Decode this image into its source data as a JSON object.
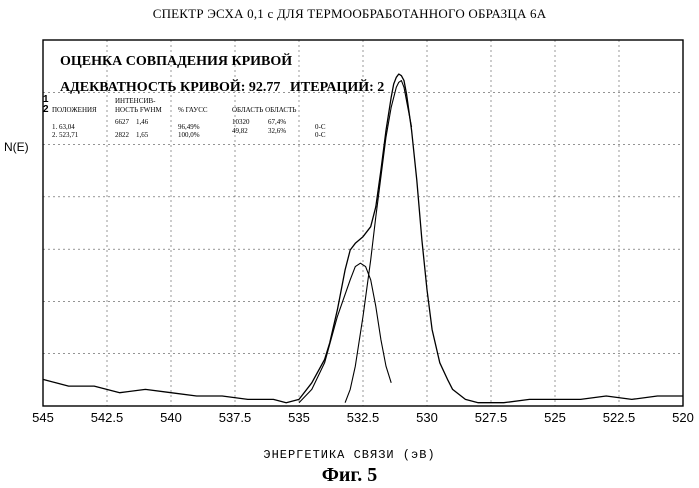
{
  "figure": {
    "title": "СПЕКТР ЭСХА 0,1 с ДЛЯ ТЕРМООБРАБОТАННОГО ОБРАЗЦА 6А",
    "caption": "Фиг. 5"
  },
  "fit_panel": {
    "title": "ОЦЕНКА СОВПАДЕНИЯ КРИВОЙ",
    "adequacy_label": "АДЕКВАТНОСТЬ КРИВОЙ: 92.77",
    "iterations_label": "ИТЕРАЦИЙ: 2",
    "side_numbers": [
      "1",
      "2"
    ],
    "headers": {
      "position": "ПОЛОЖЕНИЯ",
      "intensity_line1": "ИНТЕНСИВ-",
      "intensity_line2": "НОСТЬ FWHM",
      "gauss": "% ГАУСС",
      "area": "ОБЛАСТЬ ОБЛАСТЬ"
    },
    "rows": [
      {
        "position": "1. 63,04",
        "intensity": "6627",
        "fwhm": "1,46",
        "gauss": "96,49%",
        "area": "10320",
        "area_pct": "67,4%",
        "tag": "0-C"
      },
      {
        "position": "2. 523,71",
        "intensity": "2822",
        "fwhm": "1,65",
        "gauss": "100,0%",
        "area": "49,82",
        "area_pct": "32,6%",
        "tag": "0-C"
      }
    ]
  },
  "chart_data": {
    "type": "line",
    "title": "СПЕКТР ЭСХА 0,1 с ДЛЯ ТЕРМООБРАБОТАННОГО ОБРАЗЦА 6А",
    "xlabel": "ЭНЕРГЕТИКА СВЯЗИ (эВ)",
    "ylabel": "N(E)",
    "x_ticks": [
      545,
      542.5,
      540,
      537.5,
      535,
      532.5,
      530,
      527.5,
      525,
      522.5,
      520
    ],
    "x_tick_labels": [
      "545",
      "542.5",
      "540",
      "537.5",
      "535",
      "532.5",
      "530",
      "527.5",
      "525",
      "522.5",
      "520"
    ],
    "xlim": [
      545,
      520
    ],
    "x_reversed": true,
    "ylim": [
      0,
      100
    ],
    "grid": true,
    "grid_style": "dashed",
    "series": [
      {
        "role": "measured-envelope",
        "x": [
          545,
          544.5,
          544,
          543,
          542,
          541,
          540,
          539,
          538,
          537,
          536,
          535.5,
          535,
          534.5,
          534,
          533.8,
          533.5,
          533.2,
          533,
          532.8,
          532.5,
          532.2,
          532,
          531.8,
          531.6,
          531.4,
          531.3,
          531.2,
          531.1,
          531,
          530.9,
          530.8,
          530.6,
          530.4,
          530.2,
          530,
          529.8,
          529.5,
          529.2,
          529,
          528.5,
          528,
          527.5,
          527,
          526,
          525,
          524,
          523,
          522,
          521,
          520
        ],
        "y": [
          8,
          7,
          6,
          6,
          4,
          5,
          4,
          3,
          3,
          2,
          2,
          1,
          2,
          7,
          14,
          19,
          29,
          41,
          47,
          49,
          51,
          54,
          60,
          71,
          83,
          93,
          97,
          99,
          100,
          99.5,
          98,
          94,
          83,
          68,
          50,
          35,
          23,
          13,
          8,
          5,
          2,
          1,
          1,
          1,
          2,
          2,
          2,
          3,
          2,
          3,
          3
        ]
      },
      {
        "role": "fit-component-1",
        "x": [
          535,
          534.5,
          534,
          533.5,
          533,
          532.8,
          532.6,
          532.4,
          532.2,
          532,
          531.8,
          531.6,
          531.4
        ],
        "y": [
          1,
          5,
          13,
          27,
          38,
          42,
          43,
          42,
          38,
          30,
          20,
          12,
          7
        ]
      },
      {
        "role": "fit-component-2",
        "x": [
          533.2,
          533,
          532.8,
          532.5,
          532.2,
          532,
          531.8,
          531.6,
          531.4,
          531.2,
          531.1,
          531,
          530.9,
          530.8,
          530.6
        ],
        "y": [
          1,
          5,
          12,
          27,
          44,
          57,
          69,
          81,
          90,
          96,
          97.5,
          98,
          96,
          92,
          84
        ]
      }
    ]
  }
}
